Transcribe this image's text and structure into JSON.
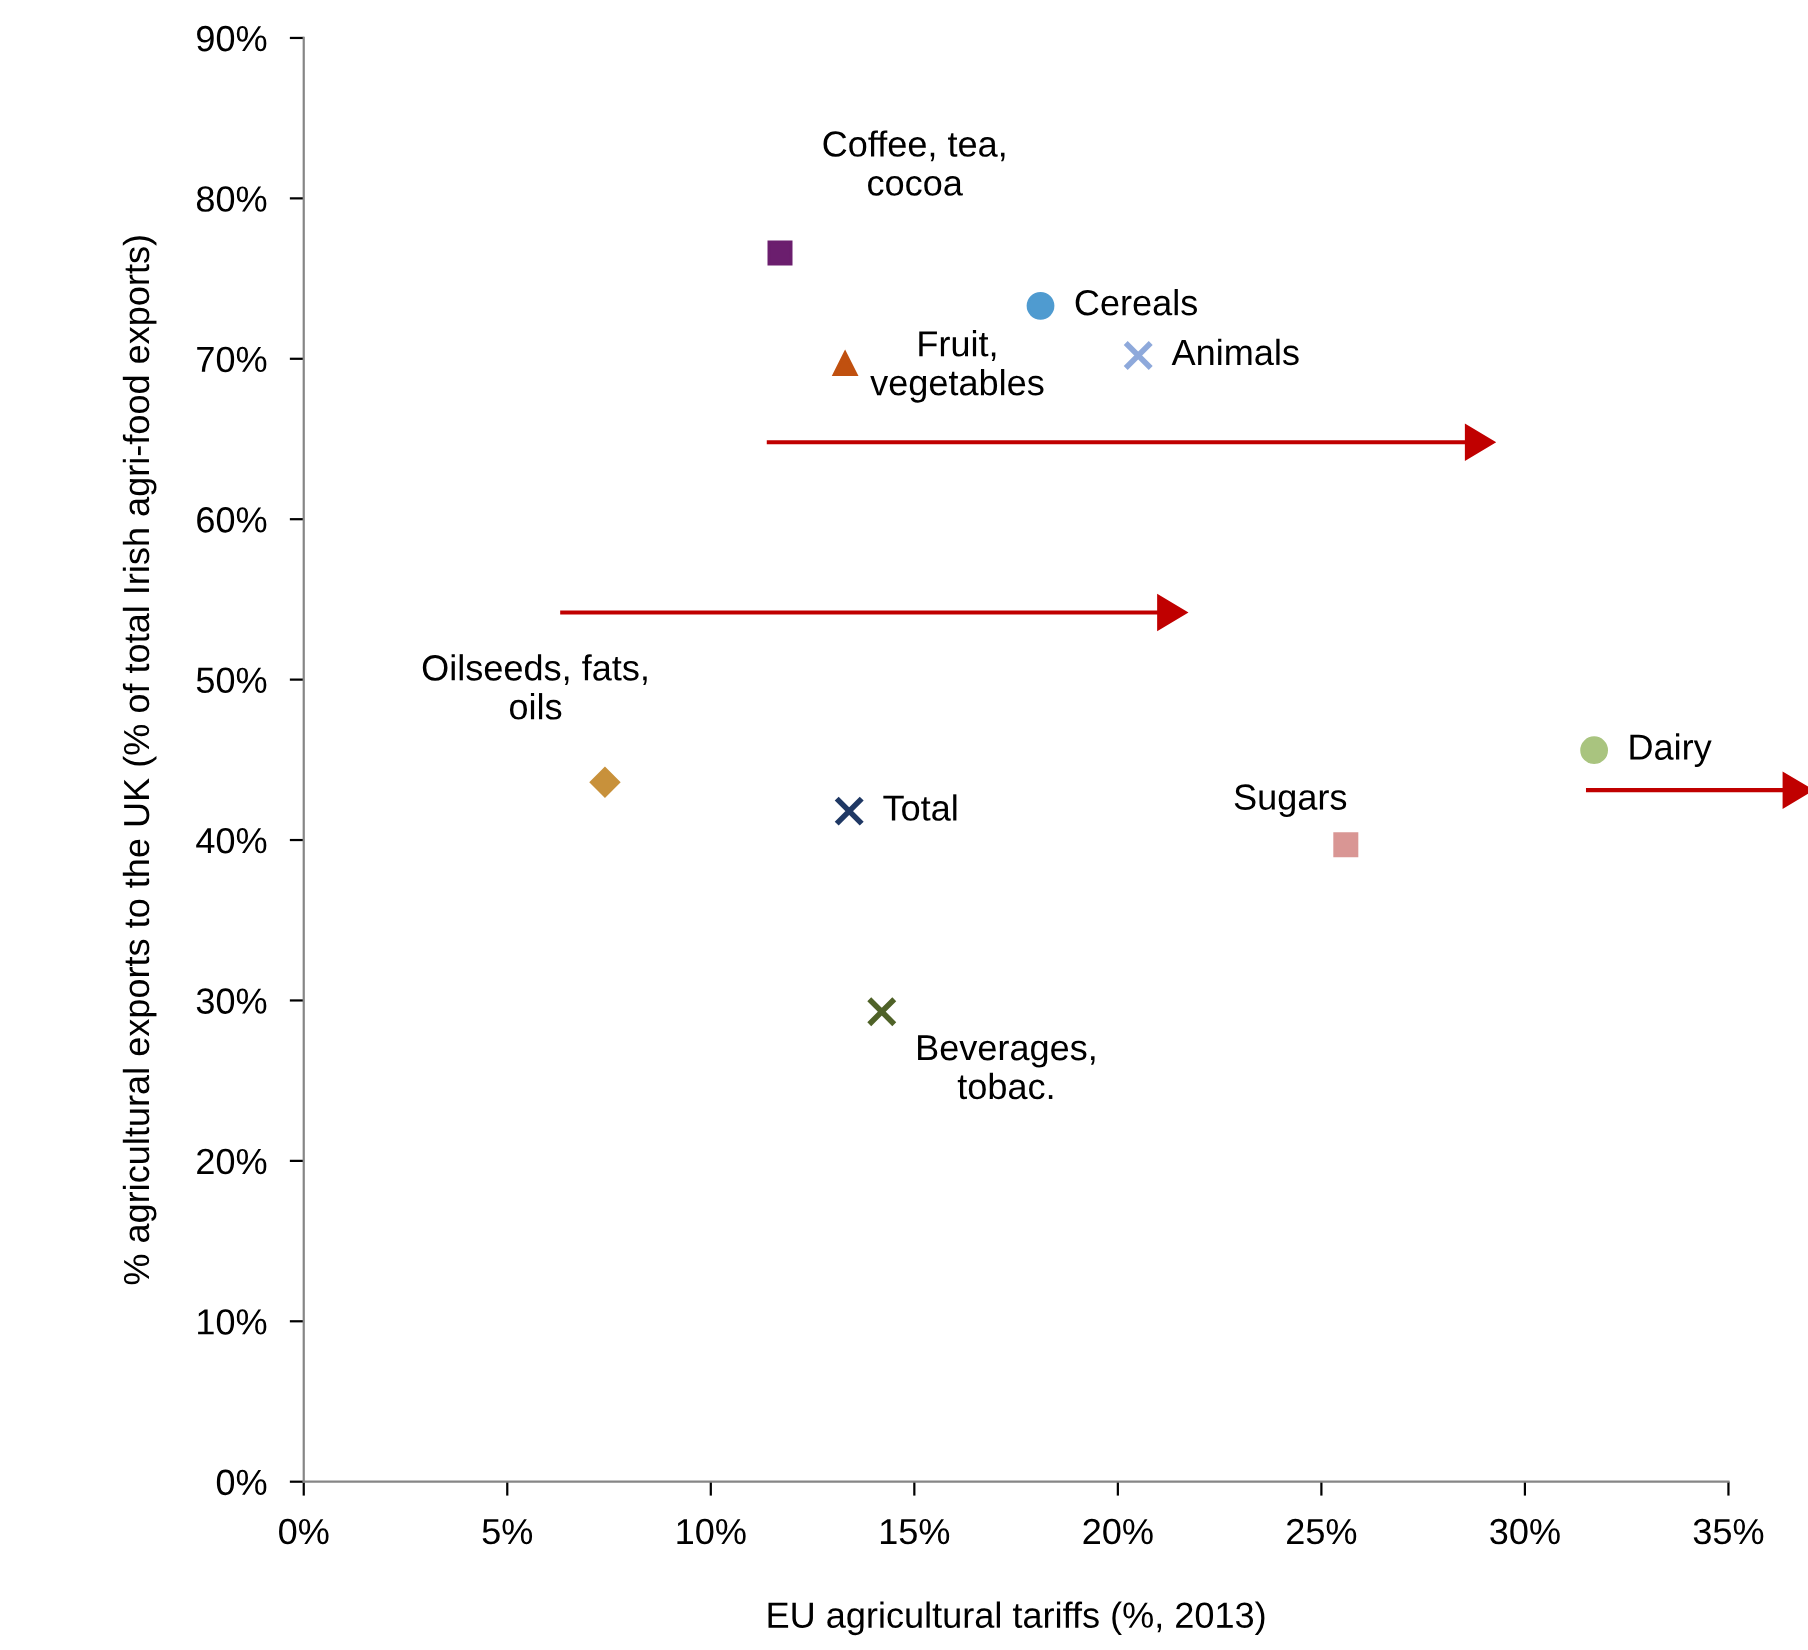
{
  "chart_data": {
    "type": "scatter",
    "xlabel": "EU agricultural tariffs (%, 2013)",
    "ylabel": "% agricultural exports to the UK (% of total Irish agri-food exports)",
    "series": [
      {
        "name": "Coffee, tea, cocoa",
        "color": "#6b1e6e",
        "marker": "square",
        "x": [
          11.7
        ],
        "values": [
          76.6
        ]
      },
      {
        "name": "Cereals",
        "color": "#4f9bd0",
        "marker": "circle",
        "x": [
          18.1
        ],
        "values": [
          73.3
        ]
      },
      {
        "name": "Fruit, vegetables",
        "color": "#c0500f",
        "marker": "triangle",
        "x": [
          13.3
        ],
        "values": [
          69.7
        ]
      },
      {
        "name": "Animals",
        "color": "#8ea9db",
        "marker": "cross",
        "x": [
          20.5
        ],
        "values": [
          70.2
        ]
      },
      {
        "name": "Oilseeds, fats, oils",
        "color": "#c8913b",
        "marker": "diamond",
        "x": [
          7.4
        ],
        "values": [
          43.6
        ]
      },
      {
        "name": "Total",
        "color": "#1f3864",
        "marker": "cross",
        "x": [
          13.4
        ],
        "values": [
          41.8
        ]
      },
      {
        "name": "Beverages, tobac.",
        "color": "#4f6228",
        "marker": "cross",
        "x": [
          14.2
        ],
        "values": [
          29.3
        ]
      },
      {
        "name": "Sugars",
        "color": "#d99694",
        "marker": "square",
        "x": [
          25.6
        ],
        "values": [
          39.7
        ]
      },
      {
        "name": "Dairy",
        "color": "#a9c47f",
        "marker": "circle",
        "x": [
          31.7
        ],
        "values": [
          45.6
        ]
      }
    ],
    "xlim": [
      0,
      35
    ],
    "xticks": [
      {
        "value": 0,
        "label": "0%"
      },
      {
        "value": 5,
        "label": "5%"
      },
      {
        "value": 10,
        "label": "10%"
      },
      {
        "value": 15,
        "label": "15%"
      },
      {
        "value": 20,
        "label": "20%"
      },
      {
        "value": 25,
        "label": "25%"
      },
      {
        "value": 30,
        "label": "30%"
      },
      {
        "value": 35,
        "label": "35%"
      }
    ],
    "ylim": [
      0,
      90
    ],
    "yticks": [
      {
        "value": 0,
        "label": "0%"
      },
      {
        "value": 10,
        "label": "10%"
      },
      {
        "value": 20,
        "label": "20%"
      },
      {
        "value": 30,
        "label": "30%"
      },
      {
        "value": 40,
        "label": "40%"
      },
      {
        "value": 50,
        "label": "50%"
      },
      {
        "value": 60,
        "label": "60%"
      },
      {
        "value": 70,
        "label": "70%"
      },
      {
        "value": 80,
        "label": "80%"
      },
      {
        "value": 90,
        "label": "90%"
      }
    ],
    "grid": false,
    "legend": false
  }
}
